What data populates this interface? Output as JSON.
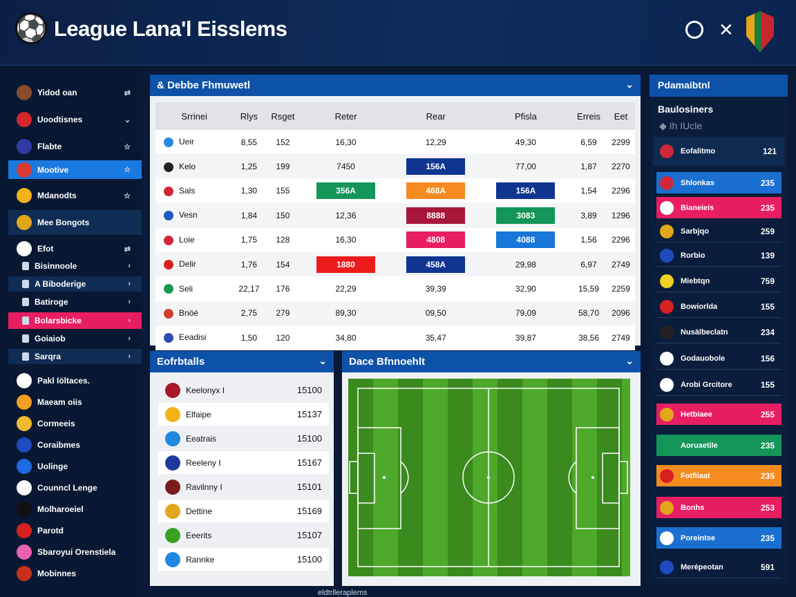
{
  "header": {
    "title": "League Lana'l Eisslems",
    "search_icon": "search-icon",
    "close_icon": "close-icon"
  },
  "sidebar": {
    "items": [
      {
        "label": "Yidod oan",
        "color": "#8a4b2c",
        "chev": "⇄"
      },
      {
        "label": "Uoodtisnes",
        "color": "#d7262e",
        "chev": "⌄"
      },
      {
        "label": "Flabte",
        "color": "#2f3aa6",
        "chev": "☆"
      },
      {
        "label": "Mootive",
        "color": "#d73a30",
        "chev": "☆",
        "active": "blue"
      },
      {
        "label": "Mdanodts",
        "color": "#f0b216",
        "chev": "☆"
      },
      {
        "label": "Mee Bongots",
        "color": "#e3a51a",
        "chev": "",
        "active": "dark"
      },
      {
        "label": "Efot",
        "color": "#ffffff",
        "chev": "⇄"
      },
      {
        "label": "Bisinnoole",
        "chev": "›",
        "small": true
      },
      {
        "label": "A Biboderige",
        "chev": "›",
        "small": true,
        "active": "dark"
      },
      {
        "label": "Batiroge",
        "chev": "›",
        "small": true
      },
      {
        "label": "Bolarsbicke",
        "chev": "›",
        "small": true,
        "active": "pink"
      },
      {
        "label": "Goiaiob",
        "chev": "›",
        "small": true
      },
      {
        "label": "Sarqra",
        "chev": "›",
        "small": true,
        "active": "dark"
      },
      {
        "label": "Pakl Iöltaces.",
        "color": "#ffffff"
      },
      {
        "label": "Maeam oiis",
        "color": "#f0a020"
      },
      {
        "label": "Cormeeis",
        "color": "#f0b830"
      },
      {
        "label": "Coraibmes",
        "color": "#1f4ac0"
      },
      {
        "label": "Uolinge",
        "color": "#1f6ae0"
      },
      {
        "label": "Counncl Lenge",
        "color": "#ffffff"
      },
      {
        "label": "Molharoeiel",
        "color": "#111111"
      },
      {
        "label": "Parotd",
        "color": "#d72020"
      },
      {
        "label": "Sbaroyui Orenstiela",
        "color": "#e860b0"
      },
      {
        "label": "Mobinnes",
        "color": "#c8301c"
      }
    ]
  },
  "fixtures": {
    "title": "& Debbe Fhmuwetl",
    "columns": [
      "Srrinei",
      "Rlys",
      "Rsget",
      "Reter",
      "Rear",
      "Pfisla",
      "Erreis",
      "Eet"
    ],
    "rows": [
      {
        "team": "Ueir",
        "color": "#2a8ae0",
        "cells": [
          "8,55",
          "152",
          "16,30",
          "12,29",
          "49,30",
          "6,59",
          "2299"
        ]
      },
      {
        "team": "Kelo",
        "color": "#222222",
        "cells": [
          "1,25",
          "199",
          "7450",
          "156A",
          "77,00",
          "1,87",
          "2270"
        ],
        "badges": {
          "3": "#0f3590"
        }
      },
      {
        "team": "Sals",
        "color": "#d0283a",
        "cells": [
          "1,30",
          "155",
          "356A",
          "468A",
          "156A",
          "1,54",
          "2296"
        ],
        "badges": {
          "2": "#14955a",
          "3": "#f58a1f",
          "4": "#0f3590"
        }
      },
      {
        "team": "Vesn",
        "color": "#1f5ac0",
        "cells": [
          "1,84",
          "150",
          "12,36",
          "8888",
          "3083",
          "3,89",
          "1296"
        ],
        "badges": {
          "3": "#a8173a",
          "4": "#14955a"
        }
      },
      {
        "team": "Loie",
        "color": "#d0283a",
        "cells": [
          "1,75",
          "128",
          "16,30",
          "4808",
          "4088",
          "1,56",
          "2296"
        ],
        "badges": {
          "3": "#e81e62",
          "4": "#1877d8"
        }
      },
      {
        "team": "Delir",
        "color": "#d72020",
        "cells": [
          "1,76",
          "154",
          "1880",
          "458A",
          "29,98",
          "6,97",
          "2749"
        ],
        "badges": {
          "2": "#ec1c1c",
          "3": "#0f3590"
        }
      },
      {
        "team": "Seli",
        "color": "#1a9a50",
        "cells": [
          "22,17",
          "176",
          "22,29",
          "39,39",
          "32,90",
          "15,59",
          "2259"
        ]
      },
      {
        "team": "Bnöé",
        "color": "#d0402a",
        "cells": [
          "2,75",
          "279",
          "89,30",
          "09,50",
          "79,09",
          "58,70",
          "2096"
        ]
      },
      {
        "team": "Eeadisi",
        "color": "#2f4ab0",
        "cells": [
          "1,50",
          "120",
          "34,80",
          "35,47",
          "39,87",
          "38,56",
          "2749"
        ]
      }
    ]
  },
  "standings": {
    "title": "Eofrbtalls",
    "rows": [
      {
        "name": "Keelonyx I",
        "value": "15100",
        "color": "#a8172a"
      },
      {
        "name": "Elfaipe",
        "value": "15137",
        "color": "#f0b216"
      },
      {
        "name": "Eeatrais",
        "value": "15100",
        "color": "#1f88e0"
      },
      {
        "name": "Reeleny I",
        "value": "15167",
        "color": "#1f3a9a"
      },
      {
        "name": "Ravilnny I",
        "value": "15101",
        "color": "#7a1c1c"
      },
      {
        "name": "Dettine",
        "value": "15169",
        "color": "#e3a51a"
      },
      {
        "name": "Eeerits",
        "value": "15107",
        "color": "#3aa020"
      },
      {
        "name": "Rannke",
        "value": "15100",
        "color": "#1f88e0"
      }
    ]
  },
  "pitch": {
    "title": "Dace Bfnnoehlt"
  },
  "right": {
    "title": "Pdamaibtnl",
    "subtitle": "Baulosiners",
    "sub2": "Ih IUcle",
    "featured": {
      "name": "Eofalitmo",
      "value": "121"
    },
    "rows": [
      {
        "name": "Shlonkas",
        "value": "235",
        "bg": "#1a6fd0",
        "color": "#d0283a"
      },
      {
        "name": "Bianeieis",
        "value": "235",
        "bg": "#e81e62",
        "color": "#ffffff"
      },
      {
        "name": "Sarbjqo",
        "value": "259",
        "color": "#e3a51a"
      },
      {
        "name": "Rorbio",
        "value": "139",
        "color": "#1f4ac0"
      },
      {
        "name": "Miebtqn",
        "value": "759",
        "color": "#f0d020"
      },
      {
        "name": "Bowiorlda",
        "value": "155",
        "color": "#d72020"
      },
      {
        "name": "Nusälbeclatn",
        "value": "234",
        "color": "#222222"
      },
      {
        "name": "Godauobole",
        "value": "156",
        "color": "#ffffff"
      },
      {
        "name": "Arobi Grcitore",
        "value": "155",
        "color": "#ffffff"
      },
      {
        "name": "Hetbiaee",
        "value": "255",
        "bg": "#e81e62",
        "color": "#e3a51a"
      },
      {
        "name": "Aoruaetile",
        "value": "235",
        "bg": "#14955a",
        "color": "#14955a"
      },
      {
        "name": "Fotfiiaat",
        "value": "235",
        "bg": "#f58a1f",
        "color": "#d72020"
      },
      {
        "name": "Bonhs",
        "value": "253",
        "bg": "#e81e62",
        "color": "#e3a51a"
      },
      {
        "name": "Poreintse",
        "value": "235",
        "bg": "#1a6fd0",
        "color": "#ffffff"
      },
      {
        "name": "Merépeotan",
        "value": "591",
        "color": "#1f4ac0"
      }
    ]
  },
  "footer": {
    "text": "eldtrlleraplems"
  }
}
